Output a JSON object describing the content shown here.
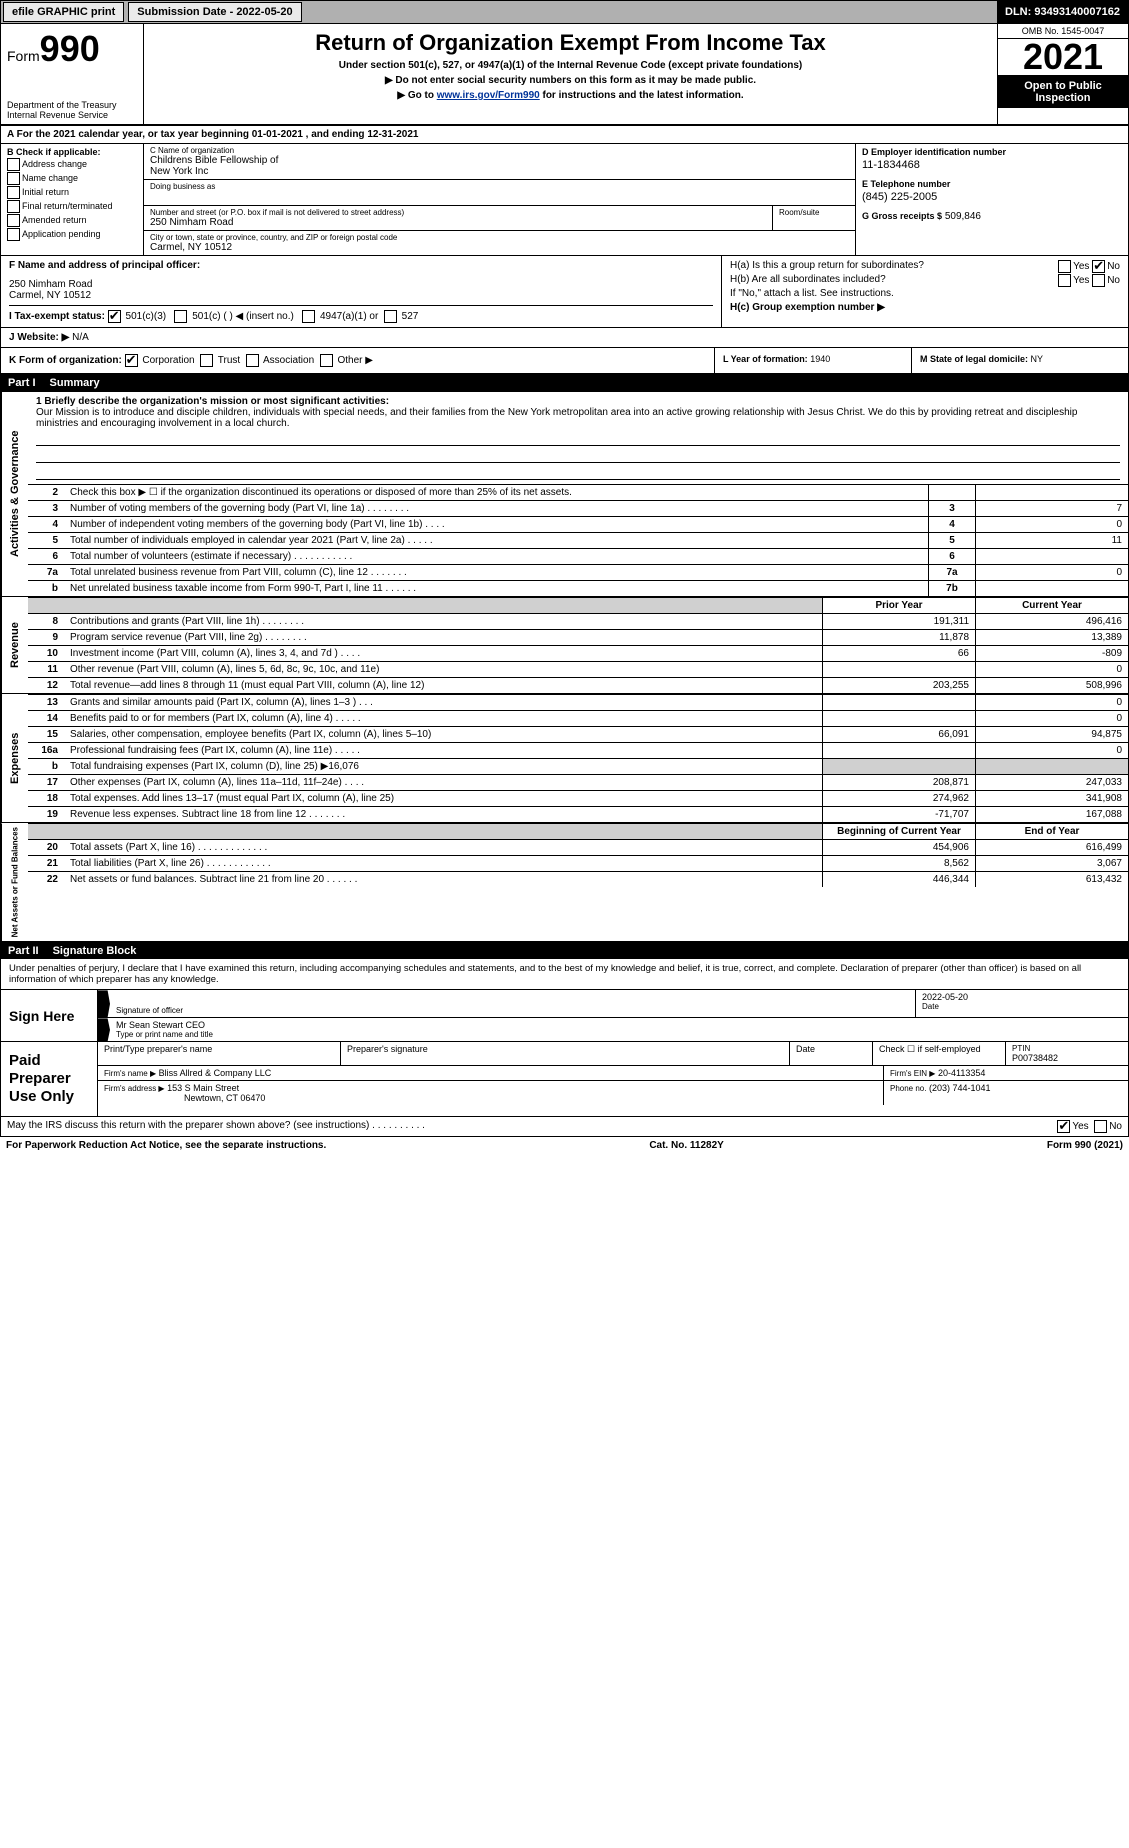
{
  "topbar": {
    "efile": "efile GRAPHIC print",
    "submission_label": "Submission Date - 2022-05-20",
    "dln": "DLN: 93493140007162"
  },
  "header": {
    "form_label": "Form",
    "form_number": "990",
    "title": "Return of Organization Exempt From Income Tax",
    "subtitle": "Under section 501(c), 527, or 4947(a)(1) of the Internal Revenue Code (except private foundations)",
    "note1": "▶ Do not enter social security numbers on this form as it may be made public.",
    "note2_pre": "▶ Go to ",
    "note2_link": "www.irs.gov/Form990",
    "note2_post": " for instructions and the latest information.",
    "dept": "Department of the Treasury",
    "irs": "Internal Revenue Service",
    "omb": "OMB No. 1545-0047",
    "year": "2021",
    "open_public": "Open to Public Inspection"
  },
  "rowA": "A For the 2021 calendar year, or tax year beginning 01-01-2021    , and ending 12-31-2021",
  "colB": {
    "heading": "B Check if applicable:",
    "items": [
      "Address change",
      "Name change",
      "Initial return",
      "Final return/terminated",
      "Amended return",
      "Application pending"
    ]
  },
  "colC": {
    "name_label": "C Name of organization",
    "name1": "Childrens Bible Fellowship of",
    "name2": "New York Inc",
    "dba_label": "Doing business as",
    "dba": "",
    "addr_label": "Number and street (or P.O. box if mail is not delivered to street address)",
    "room_label": "Room/suite",
    "addr": "250 Nimham Road",
    "city_label": "City or town, state or province, country, and ZIP or foreign postal code",
    "city": "Carmel, NY  10512"
  },
  "colD": {
    "d_label": "D Employer identification number",
    "ein": "11-1834468",
    "e_label": "E Telephone number",
    "phone": "(845) 225-2005",
    "g_label": "G Gross receipts $",
    "gross": "509,846"
  },
  "rowF": {
    "label": "F  Name and address of principal officer:",
    "addr1": "250 Nimham Road",
    "addr2": "Carmel, NY  10512"
  },
  "rowH": {
    "ha": "H(a)  Is this a group return for subordinates?",
    "ha_yes": "Yes",
    "ha_no": "No",
    "hb": "H(b)  Are all subordinates included?",
    "hb_yes": "Yes",
    "hb_no": "No",
    "hb_note": "If \"No,\" attach a list. See instructions.",
    "hc": "H(c)  Group exemption number ▶"
  },
  "rowI": {
    "label": "I   Tax-exempt status:",
    "c3": "501(c)(3)",
    "c": "501(c) (  ) ◀ (insert no.)",
    "a1": "4947(a)(1) or",
    "s527": "527"
  },
  "rowJ": {
    "label": "J   Website: ▶",
    "val": "N/A"
  },
  "rowK": {
    "label": "K Form of organization:",
    "corp": "Corporation",
    "trust": "Trust",
    "assoc": "Association",
    "other": "Other ▶",
    "l_label": "L Year of formation:",
    "l_val": "1940",
    "m_label": "M State of legal domicile:",
    "m_val": "NY"
  },
  "part1": {
    "num": "Part I",
    "title": "Summary"
  },
  "mission": {
    "label": "1  Briefly describe the organization's mission or most significant activities:",
    "text": "Our Mission is to introduce and disciple children, individuals with special needs, and their families from the New York metropolitan area into an active growing relationship with Jesus Christ. We do this by providing retreat and discipleship ministries and encouraging involvement in a local church."
  },
  "gov_rows": [
    {
      "n": "2",
      "t": "Check this box ▶ ☐  if the organization discontinued its operations or disposed of more than 25% of its net assets.",
      "box": "",
      "val": ""
    },
    {
      "n": "3",
      "t": "Number of voting members of the governing body (Part VI, line 1a)   .    .    .    .    .    .    .    .",
      "box": "3",
      "val": "7"
    },
    {
      "n": "4",
      "t": "Number of independent voting members of the governing body (Part VI, line 1b)   .    .    .    .",
      "box": "4",
      "val": "0"
    },
    {
      "n": "5",
      "t": "Total number of individuals employed in calendar year 2021 (Part V, line 2a)   .    .    .    .    .",
      "box": "5",
      "val": "11"
    },
    {
      "n": "6",
      "t": "Total number of volunteers (estimate if necessary)    .    .    .    .    .    .    .    .    .    .    .",
      "box": "6",
      "val": ""
    },
    {
      "n": "7a",
      "t": "Total unrelated business revenue from Part VIII, column (C), line 12   .    .    .    .    .    .    .",
      "box": "7a",
      "val": "0"
    },
    {
      "n": "b",
      "t": "Net unrelated business taxable income from Form 990-T, Part I, line 11    .    .    .    .    .    .",
      "box": "7b",
      "val": ""
    }
  ],
  "rev_hdr": {
    "py": "Prior Year",
    "cy": "Current Year"
  },
  "rev_rows": [
    {
      "n": "8",
      "t": "Contributions and grants (Part VIII, line 1h)    .    .    .    .    .    .    .    .",
      "py": "191,311",
      "cy": "496,416"
    },
    {
      "n": "9",
      "t": "Program service revenue (Part VIII, line 2g)    .    .    .    .    .    .    .    .",
      "py": "11,878",
      "cy": "13,389"
    },
    {
      "n": "10",
      "t": "Investment income (Part VIII, column (A), lines 3, 4, and 7d )    .    .    .    .",
      "py": "66",
      "cy": "-809"
    },
    {
      "n": "11",
      "t": "Other revenue (Part VIII, column (A), lines 5, 6d, 8c, 9c, 10c, and 11e)",
      "py": "",
      "cy": "0"
    },
    {
      "n": "12",
      "t": "Total revenue—add lines 8 through 11 (must equal Part VIII, column (A), line 12)",
      "py": "203,255",
      "cy": "508,996"
    }
  ],
  "exp_rows": [
    {
      "n": "13",
      "t": "Grants and similar amounts paid (Part IX, column (A), lines 1–3 )   .    .    .",
      "py": "",
      "cy": "0"
    },
    {
      "n": "14",
      "t": "Benefits paid to or for members (Part IX, column (A), line 4)   .    .    .    .    .",
      "py": "",
      "cy": "0"
    },
    {
      "n": "15",
      "t": "Salaries, other compensation, employee benefits (Part IX, column (A), lines 5–10)",
      "py": "66,091",
      "cy": "94,875"
    },
    {
      "n": "16a",
      "t": "Professional fundraising fees (Part IX, column (A), line 11e)   .    .    .    .    .",
      "py": "",
      "cy": "0"
    },
    {
      "n": "b",
      "t": "Total fundraising expenses (Part IX, column (D), line 25) ▶16,076",
      "py": "shade",
      "cy": "shade"
    },
    {
      "n": "17",
      "t": "Other expenses (Part IX, column (A), lines 11a–11d, 11f–24e)    .    .    .    .",
      "py": "208,871",
      "cy": "247,033"
    },
    {
      "n": "18",
      "t": "Total expenses. Add lines 13–17 (must equal Part IX, column (A), line 25)",
      "py": "274,962",
      "cy": "341,908"
    },
    {
      "n": "19",
      "t": "Revenue less expenses. Subtract line 18 from line 12   .    .    .    .    .    .    .",
      "py": "-71,707",
      "cy": "167,088"
    }
  ],
  "net_hdr": {
    "py": "Beginning of Current Year",
    "cy": "End of Year"
  },
  "net_rows": [
    {
      "n": "20",
      "t": "Total assets (Part X, line 16)   .    .    .    .    .    .    .    .    .    .    .    .    .",
      "py": "454,906",
      "cy": "616,499"
    },
    {
      "n": "21",
      "t": "Total liabilities (Part X, line 26)    .    .    .    .    .    .    .    .    .    .    .    .",
      "py": "8,562",
      "cy": "3,067"
    },
    {
      "n": "22",
      "t": "Net assets or fund balances. Subtract line 21 from line 20   .    .    .    .    .    .",
      "py": "446,344",
      "cy": "613,432"
    }
  ],
  "vtabs": {
    "gov": "Activities & Governance",
    "rev": "Revenue",
    "exp": "Expenses",
    "net": "Net Assets or Fund Balances"
  },
  "part2": {
    "num": "Part II",
    "title": "Signature Block"
  },
  "sig": {
    "decl": "Under penalties of perjury, I declare that I have examined this return, including accompanying schedules and statements, and to the best of my knowledge and belief, it is true, correct, and complete. Declaration of preparer (other than officer) is based on all information of which preparer has any knowledge.",
    "sign_here": "Sign Here",
    "sig_officer": "Signature of officer",
    "date": "Date",
    "date_val": "2022-05-20",
    "name": "Mr Sean Stewart  CEO",
    "name_label": "Type or print name and title",
    "paid": "Paid Preparer Use Only",
    "prep_name_label": "Print/Type preparer's name",
    "prep_sig_label": "Preparer's signature",
    "prep_date_label": "Date",
    "check_label": "Check ☐ if self-employed",
    "ptin_label": "PTIN",
    "ptin": "P00738482",
    "firm_name_label": "Firm's name    ▶",
    "firm_name": "Bliss Allred & Company LLC",
    "firm_ein_label": "Firm's EIN ▶",
    "firm_ein": "20-4113354",
    "firm_addr_label": "Firm's address ▶",
    "firm_addr1": "153 S Main Street",
    "firm_addr2": "Newtown, CT  06470",
    "phone_label": "Phone no.",
    "phone": "(203) 744-1041"
  },
  "footer": {
    "may": "May the IRS discuss this return with the preparer shown above? (see instructions)    .    .    .    .    .    .    .    .    .    .",
    "yes": "Yes",
    "no": "No",
    "paperwork": "For Paperwork Reduction Act Notice, see the separate instructions.",
    "cat": "Cat. No. 11282Y",
    "form": "Form 990 (2021)"
  }
}
